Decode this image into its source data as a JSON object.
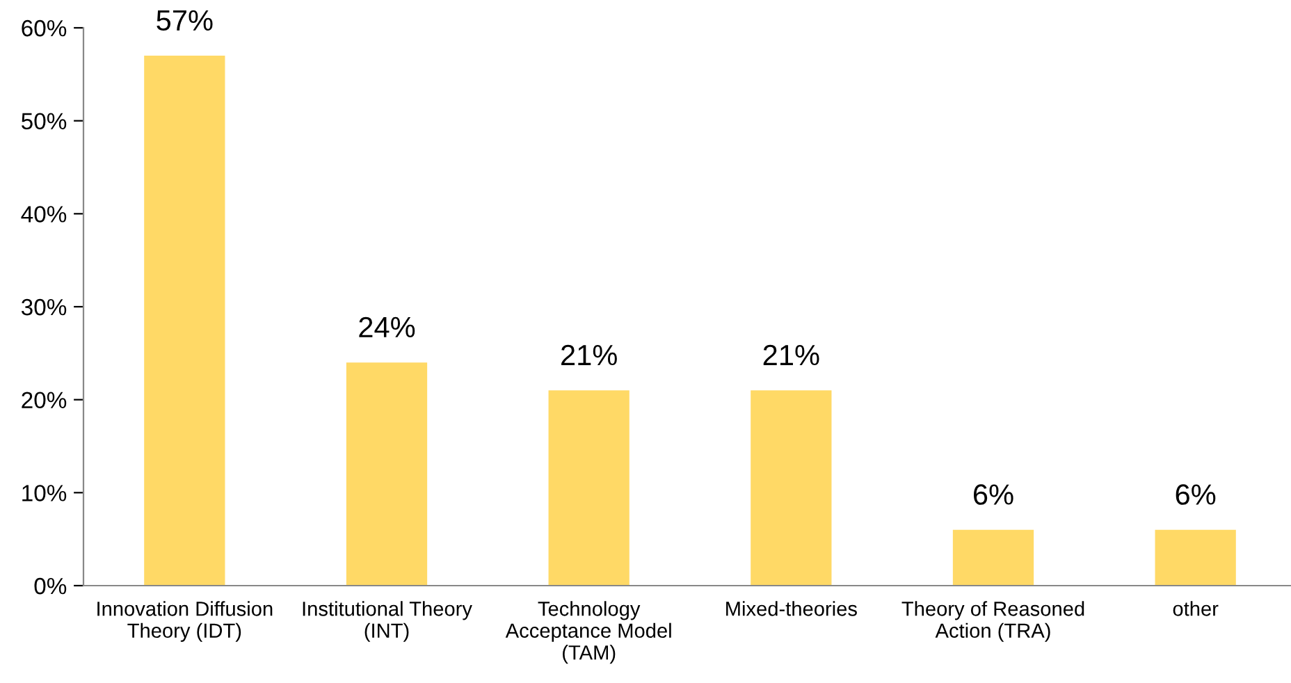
{
  "chart_data": {
    "type": "bar",
    "categories": [
      "Innovation Diffusion\nTheory (IDT)",
      "Institutional Theory\n(INT)",
      "Technology\nAcceptance Model\n(TAM)",
      "Mixed-theories",
      "Theory of Reasoned\nAction (TRA)",
      "other"
    ],
    "values": [
      57,
      24,
      21,
      21,
      6,
      6
    ],
    "value_labels": [
      "57%",
      "24%",
      "21%",
      "21%",
      "6%",
      "6%"
    ],
    "color": "#ffd966",
    "ylim": [
      0,
      60
    ],
    "yticks": [
      {
        "value": 0,
        "label": "0%"
      },
      {
        "value": 10,
        "label": "10%"
      },
      {
        "value": 20,
        "label": "20%"
      },
      {
        "value": 30,
        "label": "30%"
      },
      {
        "value": 40,
        "label": "40%"
      },
      {
        "value": 50,
        "label": "50%"
      },
      {
        "value": 60,
        "label": "60%"
      }
    ],
    "grid": false,
    "legend": false
  }
}
